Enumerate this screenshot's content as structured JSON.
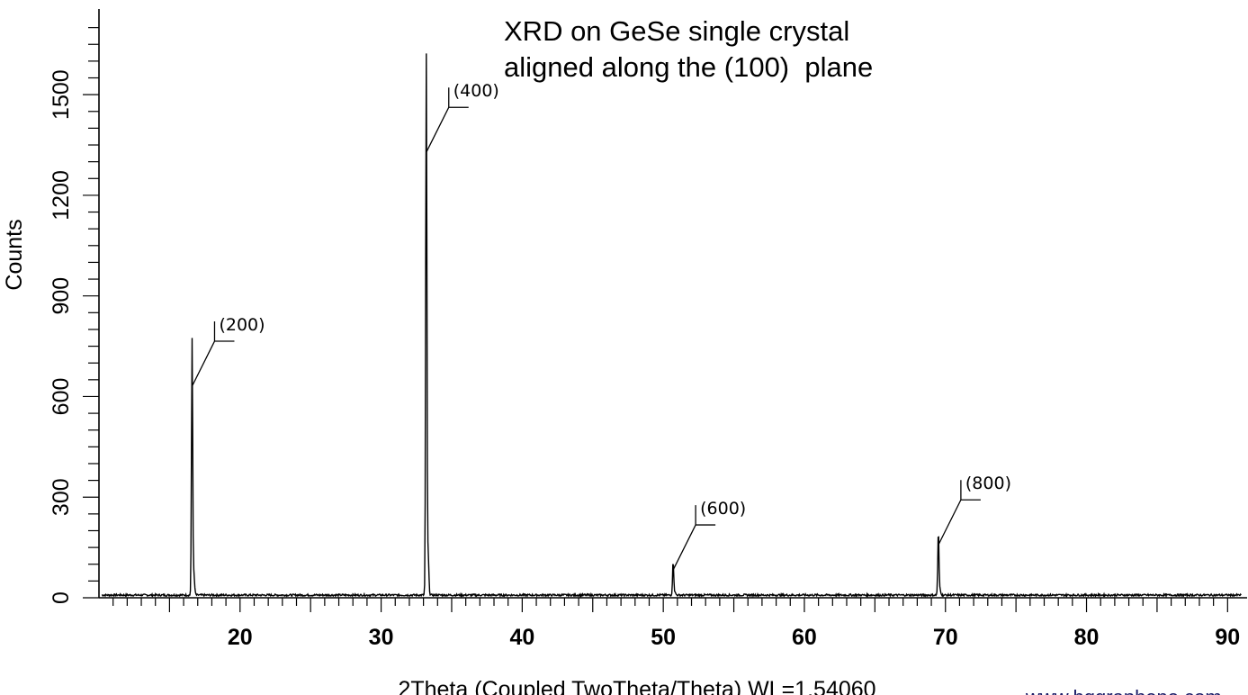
{
  "chart_data": {
    "type": "line",
    "title_line1": "XRD on GeSe single crystal",
    "title_line2": "aligned along the (100)  plane",
    "xlabel": "2Theta (Coupled TwoTheta/Theta) WL=1.54060",
    "ylabel": "Counts",
    "xlim": [
      10,
      91
    ],
    "ylim": [
      0,
      1750
    ],
    "xticks": [
      "20",
      "30",
      "40",
      "50",
      "60",
      "70",
      "80",
      "90"
    ],
    "yticks": [
      "0",
      "300",
      "600",
      "900",
      "1200",
      "1500"
    ],
    "peaks": [
      {
        "x": 16.6,
        "y": 760,
        "label": "(200)"
      },
      {
        "x": 33.2,
        "y": 1600,
        "label": "(400)"
      },
      {
        "x": 50.7,
        "y": 100,
        "label": "(600)"
      },
      {
        "x": 69.5,
        "y": 190,
        "label": "(800)"
      }
    ],
    "baseline": 5
  },
  "watermark": "www.hqgraphene.com"
}
